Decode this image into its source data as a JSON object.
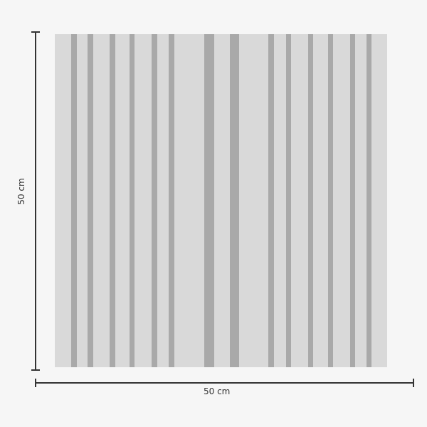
{
  "dimensions": {
    "height_label": "50 cm",
    "width_label": "50 cm"
  },
  "colors": {
    "background": "#f6f6f6",
    "tile": "#d9d9d9",
    "stripe": "#a9a9a9",
    "dimension_line": "#333333"
  }
}
